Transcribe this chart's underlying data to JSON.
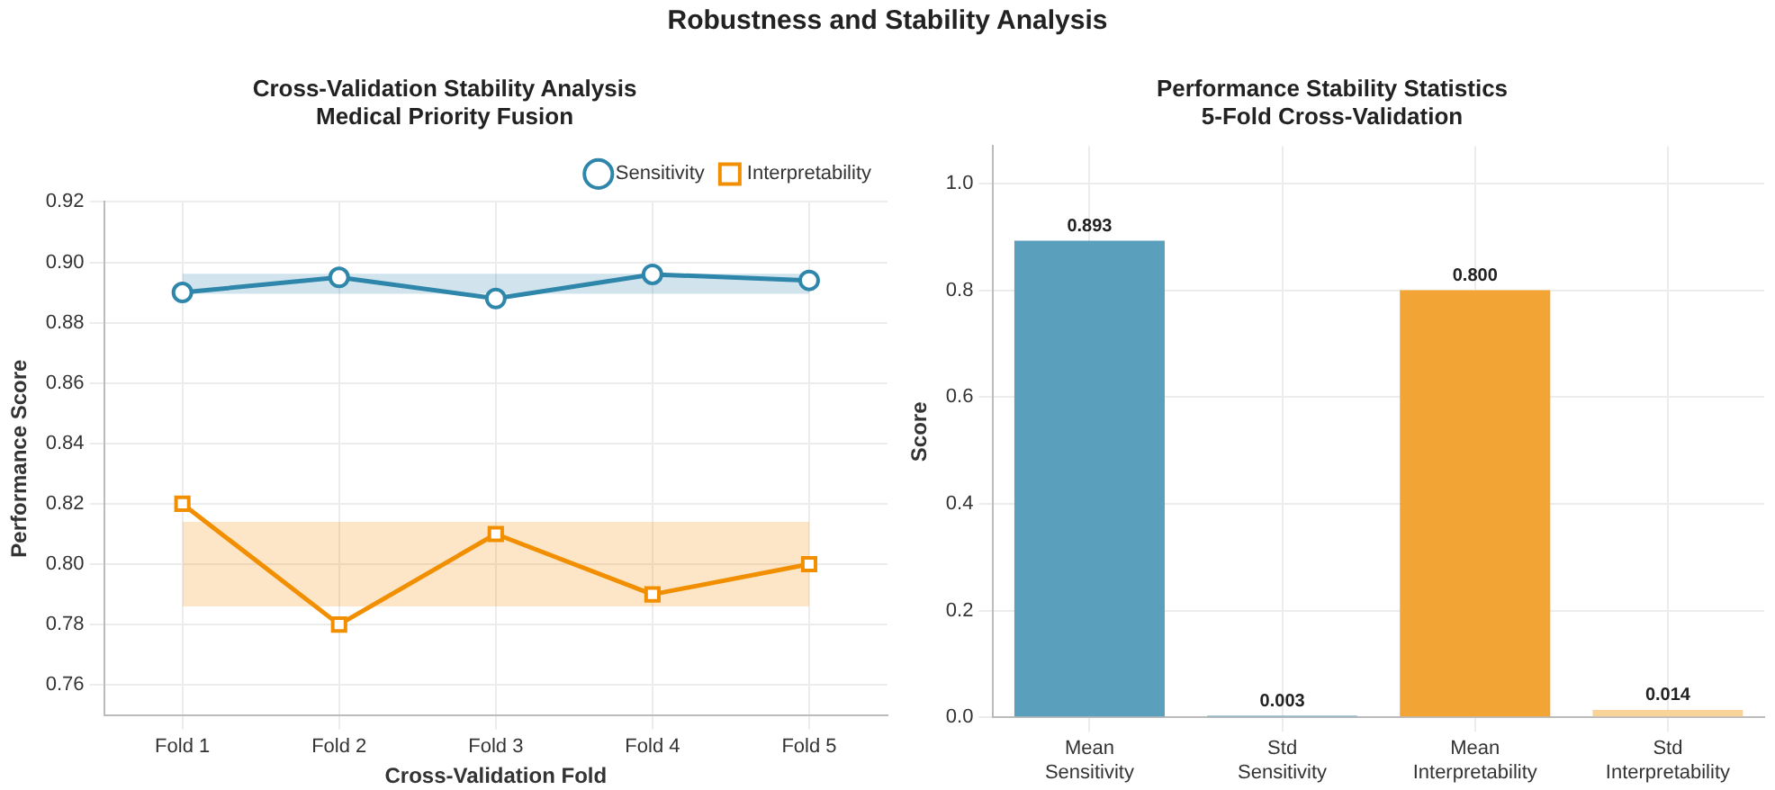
{
  "chart_data": [
    {
      "type": "other",
      "title": "Robustness and Stability Analysis"
    },
    {
      "type": "line",
      "title": "Cross-Validation Stability Analysis",
      "subtitle": "Medical Priority Fusion",
      "xlabel": "Cross-Validation Fold",
      "ylabel": "Performance Score",
      "categories": [
        "Fold 1",
        "Fold 2",
        "Fold 3",
        "Fold 4",
        "Fold 5"
      ],
      "series": [
        {
          "name": "Sensitivity",
          "color": "#2e86ab",
          "marker": "circle",
          "values": [
            0.89,
            0.895,
            0.888,
            0.896,
            0.894
          ],
          "lower": [
            0.8896,
            0.8896,
            0.8896,
            0.8896,
            0.8896
          ],
          "upper": [
            0.8962,
            0.8962,
            0.8962,
            0.8962,
            0.8962
          ]
        },
        {
          "name": "Interpretability",
          "color": "#f18f01",
          "marker": "square",
          "values": [
            0.82,
            0.78,
            0.81,
            0.79,
            0.8
          ],
          "lower": [
            0.786,
            0.786,
            0.786,
            0.786,
            0.786
          ],
          "upper": [
            0.814,
            0.814,
            0.814,
            0.814,
            0.814
          ]
        }
      ],
      "ylim": [
        0.75,
        0.92
      ],
      "yticks": [
        0.76,
        0.78,
        {
          "value": 0.8,
          "label": "0.80"
        },
        0.82,
        0.84,
        0.86,
        0.88,
        {
          "value": 0.9,
          "label": "0.90"
        },
        0.92
      ],
      "grid": true,
      "legend": "top right"
    },
    {
      "type": "bar",
      "title": "Performance Stability Statistics",
      "subtitle": "5-Fold Cross-Validation",
      "ylabel": "Score",
      "categories": [
        "Mean\nSensitivity",
        "Std\nSensitivity",
        "Mean\nInterpretability",
        "Std\nInterpretability"
      ],
      "values": [
        0.893,
        0.003,
        0.8,
        0.014
      ],
      "colors": [
        "#5a9fbb",
        "#5a9fbb",
        "#f2a535",
        "#f9d49a"
      ],
      "value_labels": [
        "0.893",
        "0.003",
        "0.800",
        "0.014"
      ],
      "ylim": [
        0,
        1.07
      ],
      "yticks": [
        {
          "value": 0,
          "label": "0.0"
        },
        0.2,
        0.4,
        0.6,
        0.8,
        {
          "value": 1,
          "label": "1.0"
        }
      ],
      "grid": true
    }
  ]
}
